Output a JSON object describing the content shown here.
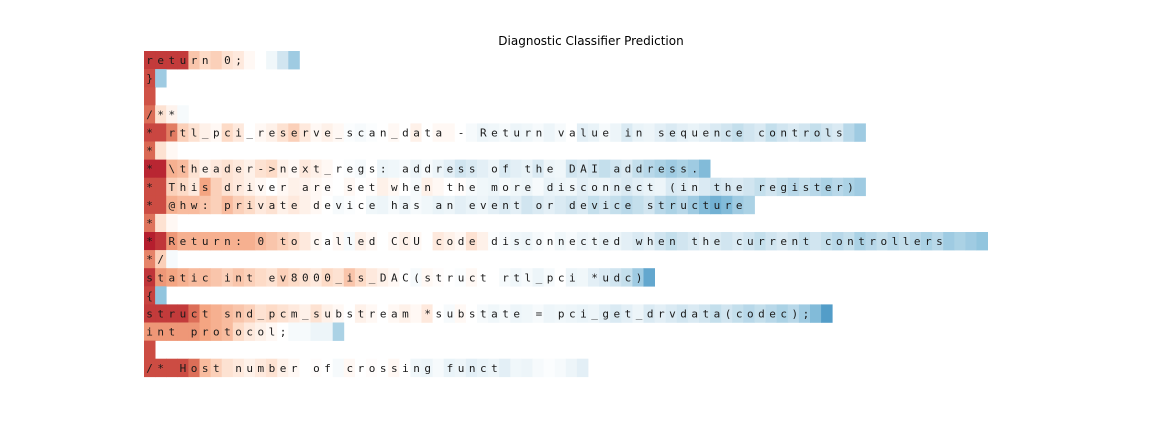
{
  "chart_data": {
    "type": "heatmap",
    "title": "Diagnostic Classifier Prediction",
    "xlabel": "",
    "ylabel": "",
    "grid": false,
    "colormap": "diverging red-white-blue (red = high, blue = low)",
    "lines": [
      {
        "text": "    return 0;",
        "values": [
          0.88,
          0.88,
          0.88,
          0.88,
          0.35,
          0.25,
          0.3,
          0.2,
          0.15,
          0.05,
          0.0,
          -0.08,
          -0.25,
          -0.45
        ]
      },
      {
        "text": "}",
        "values": [
          0.82,
          -0.45
        ]
      },
      {
        "text": "",
        "values": [
          0.8
        ]
      },
      {
        "text": "/**",
        "values": [
          0.7,
          0.2,
          0.08,
          -0.05
        ]
      },
      {
        "text": " * rtl_pci_reserve_scan_data - Return value in sequence controls",
        "values": [
          0.84,
          0.84,
          0.65,
          0.3,
          0.2,
          0.1,
          0.05,
          0.25,
          0.15,
          0.0,
          0.05,
          0.1,
          0.2,
          0.3,
          0.15,
          0.05,
          0.1,
          0.05,
          -0.02,
          -0.05,
          -0.02,
          0.0,
          0.05,
          0.0,
          0.1,
          0.0,
          0.05,
          0.05,
          0.0,
          -0.05,
          -0.1,
          -0.08,
          -0.05,
          -0.1,
          -0.08,
          -0.05,
          -0.1,
          -0.05,
          0.0,
          -0.15,
          -0.12,
          -0.05,
          -0.1,
          -0.2,
          -0.12,
          -0.1,
          -0.15,
          -0.2,
          -0.15,
          -0.12,
          -0.15,
          -0.2,
          -0.25,
          -0.3,
          -0.25,
          -0.2,
          -0.3,
          -0.25,
          -0.2,
          -0.25,
          -0.3,
          -0.25,
          -0.2,
          -0.35,
          -0.45
        ]
      },
      {
        "text": " *",
        "values": [
          0.72,
          0.2,
          0.05
        ]
      },
      {
        "text": " * \\theader->next_regs: address of the DAI address.",
        "values": [
          0.95,
          0.95,
          0.45,
          0.4,
          0.2,
          0.1,
          0.15,
          0.2,
          0.15,
          0.1,
          0.2,
          0.25,
          0.1,
          0.05,
          0.15,
          0.1,
          0.05,
          0.0,
          -0.02,
          -0.05,
          0.0,
          -0.1,
          -0.08,
          -0.05,
          -0.1,
          -0.05,
          -0.1,
          -0.15,
          -0.25,
          -0.2,
          -0.15,
          -0.1,
          -0.2,
          -0.15,
          -0.12,
          -0.2,
          -0.1,
          -0.08,
          -0.25,
          -0.2,
          -0.25,
          -0.3,
          -0.25,
          -0.2,
          -0.3,
          -0.35,
          -0.4,
          -0.45,
          -0.4,
          -0.45,
          -0.55
        ]
      },
      {
        "text": " * This driver are set when the more disconnect (in the register)",
        "values": [
          0.82,
          0.82,
          0.3,
          0.25,
          0.15,
          0.5,
          0.3,
          0.2,
          0.15,
          0.1,
          0.05,
          0.0,
          0.05,
          0.1,
          0.08,
          0.05,
          0.02,
          0.0,
          0.05,
          0.0,
          0.02,
          0.1,
          0.05,
          0.0,
          -0.05,
          0.1,
          0.05,
          0.0,
          0.02,
          -0.05,
          -0.08,
          -0.1,
          -0.05,
          -0.08,
          -0.1,
          -0.05,
          -0.12,
          -0.1,
          -0.08,
          -0.15,
          -0.12,
          -0.1,
          -0.15,
          -0.2,
          -0.15,
          -0.12,
          -0.1,
          -0.2,
          -0.18,
          -0.15,
          -0.2,
          -0.25,
          -0.22,
          -0.2,
          -0.25,
          -0.3,
          -0.25,
          -0.3,
          -0.35,
          -0.3,
          -0.35,
          -0.4,
          -0.35,
          -0.4,
          -0.45
        ]
      },
      {
        "text": " * @hw: private device has an event or device structure",
        "values": [
          0.82,
          0.82,
          0.45,
          0.4,
          0.4,
          0.35,
          0.3,
          0.4,
          0.3,
          0.25,
          0.15,
          0.2,
          0.1,
          0.15,
          0.1,
          0.05,
          0.0,
          -0.05,
          -0.02,
          0.0,
          -0.08,
          -0.1,
          -0.05,
          -0.1,
          -0.05,
          -0.08,
          -0.12,
          -0.1,
          -0.15,
          -0.12,
          -0.1,
          -0.15,
          -0.2,
          -0.15,
          -0.25,
          -0.2,
          -0.15,
          -0.2,
          -0.25,
          -0.2,
          -0.3,
          -0.25,
          -0.3,
          -0.35,
          -0.3,
          -0.25,
          -0.35,
          -0.4,
          -0.35,
          -0.45,
          -0.55,
          -0.6,
          -0.55,
          -0.45,
          -0.4
        ]
      },
      {
        "text": " *",
        "values": [
          0.68,
          0.2,
          0.05
        ]
      },
      {
        "text": " *    Return: 0 to called CCU code disconnected when the current controllers",
        "values": [
          0.98,
          0.9,
          0.55,
          0.45,
          0.45,
          0.45,
          0.45,
          0.45,
          0.45,
          0.45,
          0.4,
          0.35,
          0.3,
          0.25,
          0.15,
          0.05,
          0.0,
          0.05,
          -0.05,
          0.1,
          0.05,
          0.0,
          0.05,
          0.1,
          0.05,
          0.0,
          0.15,
          0.1,
          0.05,
          0.2,
          0.1,
          -0.02,
          -0.05,
          -0.08,
          -0.1,
          -0.05,
          -0.02,
          -0.08,
          -0.05,
          -0.1,
          -0.08,
          -0.12,
          -0.1,
          -0.15,
          -0.2,
          -0.15,
          -0.25,
          -0.3,
          -0.25,
          -0.2,
          -0.15,
          -0.2,
          -0.25,
          -0.2,
          -0.25,
          -0.3,
          -0.25,
          -0.2,
          -0.25,
          -0.3,
          -0.25,
          -0.3,
          -0.35,
          -0.3,
          -0.4,
          -0.35,
          -0.3,
          -0.35,
          -0.3,
          -0.35,
          -0.4,
          -0.35,
          -0.45,
          -0.4,
          -0.45,
          -0.5
        ]
      },
      {
        "text": " */",
        "values": [
          0.62,
          0.3,
          -0.05
        ]
      },
      {
        "text": "static int ev8000_is_DAC(struct rtl_pci *udc)",
        "values": [
          0.9,
          0.55,
          0.5,
          0.45,
          0.4,
          0.4,
          0.35,
          0.3,
          0.35,
          0.3,
          0.25,
          0.2,
          0.3,
          0.25,
          0.2,
          0.15,
          0.25,
          0.2,
          0.35,
          0.25,
          0.15,
          0.1,
          0.05,
          0.0,
          -0.05,
          0.05,
          0.02,
          0.0,
          -0.02,
          0.05,
          0.0,
          0.0,
          -0.05,
          -0.08,
          -0.05,
          -0.1,
          -0.05,
          0.0,
          -0.1,
          -0.08,
          -0.15,
          -0.2,
          -0.25,
          -0.3,
          -0.45,
          -0.65
        ]
      },
      {
        "text": "{",
        "values": [
          0.85,
          -0.5
        ]
      },
      {
        "text": "    struct snd_pcm_substream *substate = pci_get_drvdata(codec);",
        "values": [
          0.88,
          0.88,
          0.88,
          0.88,
          0.7,
          0.5,
          0.45,
          0.4,
          0.35,
          0.3,
          0.2,
          0.25,
          0.2,
          0.15,
          0.1,
          0.2,
          0.1,
          0.05,
          0.0,
          0.1,
          0.05,
          0.0,
          0.05,
          0.1,
          0.05,
          0.15,
          0.0,
          -0.05,
          0.05,
          0.0,
          -0.05,
          -0.08,
          -0.05,
          -0.1,
          -0.08,
          -0.05,
          -0.1,
          -0.08,
          -0.1,
          -0.12,
          -0.1,
          -0.15,
          -0.2,
          -0.15,
          -0.1,
          -0.2,
          -0.15,
          -0.2,
          -0.25,
          -0.2,
          -0.25,
          -0.3,
          -0.25,
          -0.3,
          -0.35,
          -0.3,
          -0.35,
          -0.4,
          -0.35,
          -0.45,
          -0.55,
          -0.7
        ]
      },
      {
        "text": "    int protocol;",
        "values": [
          0.55,
          0.55,
          0.55,
          0.55,
          0.55,
          0.5,
          0.45,
          0.4,
          0.25,
          0.15,
          0.1,
          0.05,
          0.0,
          -0.05,
          -0.05,
          -0.1,
          -0.1,
          -0.4
        ]
      },
      {
        "text": "",
        "values": [
          0.82
        ]
      },
      {
        "text": "    /* Host number of crossing funct",
        "values": [
          0.82,
          0.82,
          0.82,
          0.82,
          0.7,
          0.4,
          0.3,
          0.2,
          0.15,
          0.1,
          0.15,
          0.2,
          0.1,
          0.05,
          0.0,
          0.02,
          0.0,
          -0.05,
          0.05,
          0.0,
          0.02,
          0.0,
          0.05,
          0.0,
          -0.08,
          -0.1,
          -0.05,
          -0.12,
          -0.1,
          -0.15,
          -0.12,
          -0.1,
          -0.15,
          -0.08,
          -0.1,
          -0.05,
          -0.02,
          -0.05,
          -0.1,
          -0.15
        ]
      }
    ]
  }
}
